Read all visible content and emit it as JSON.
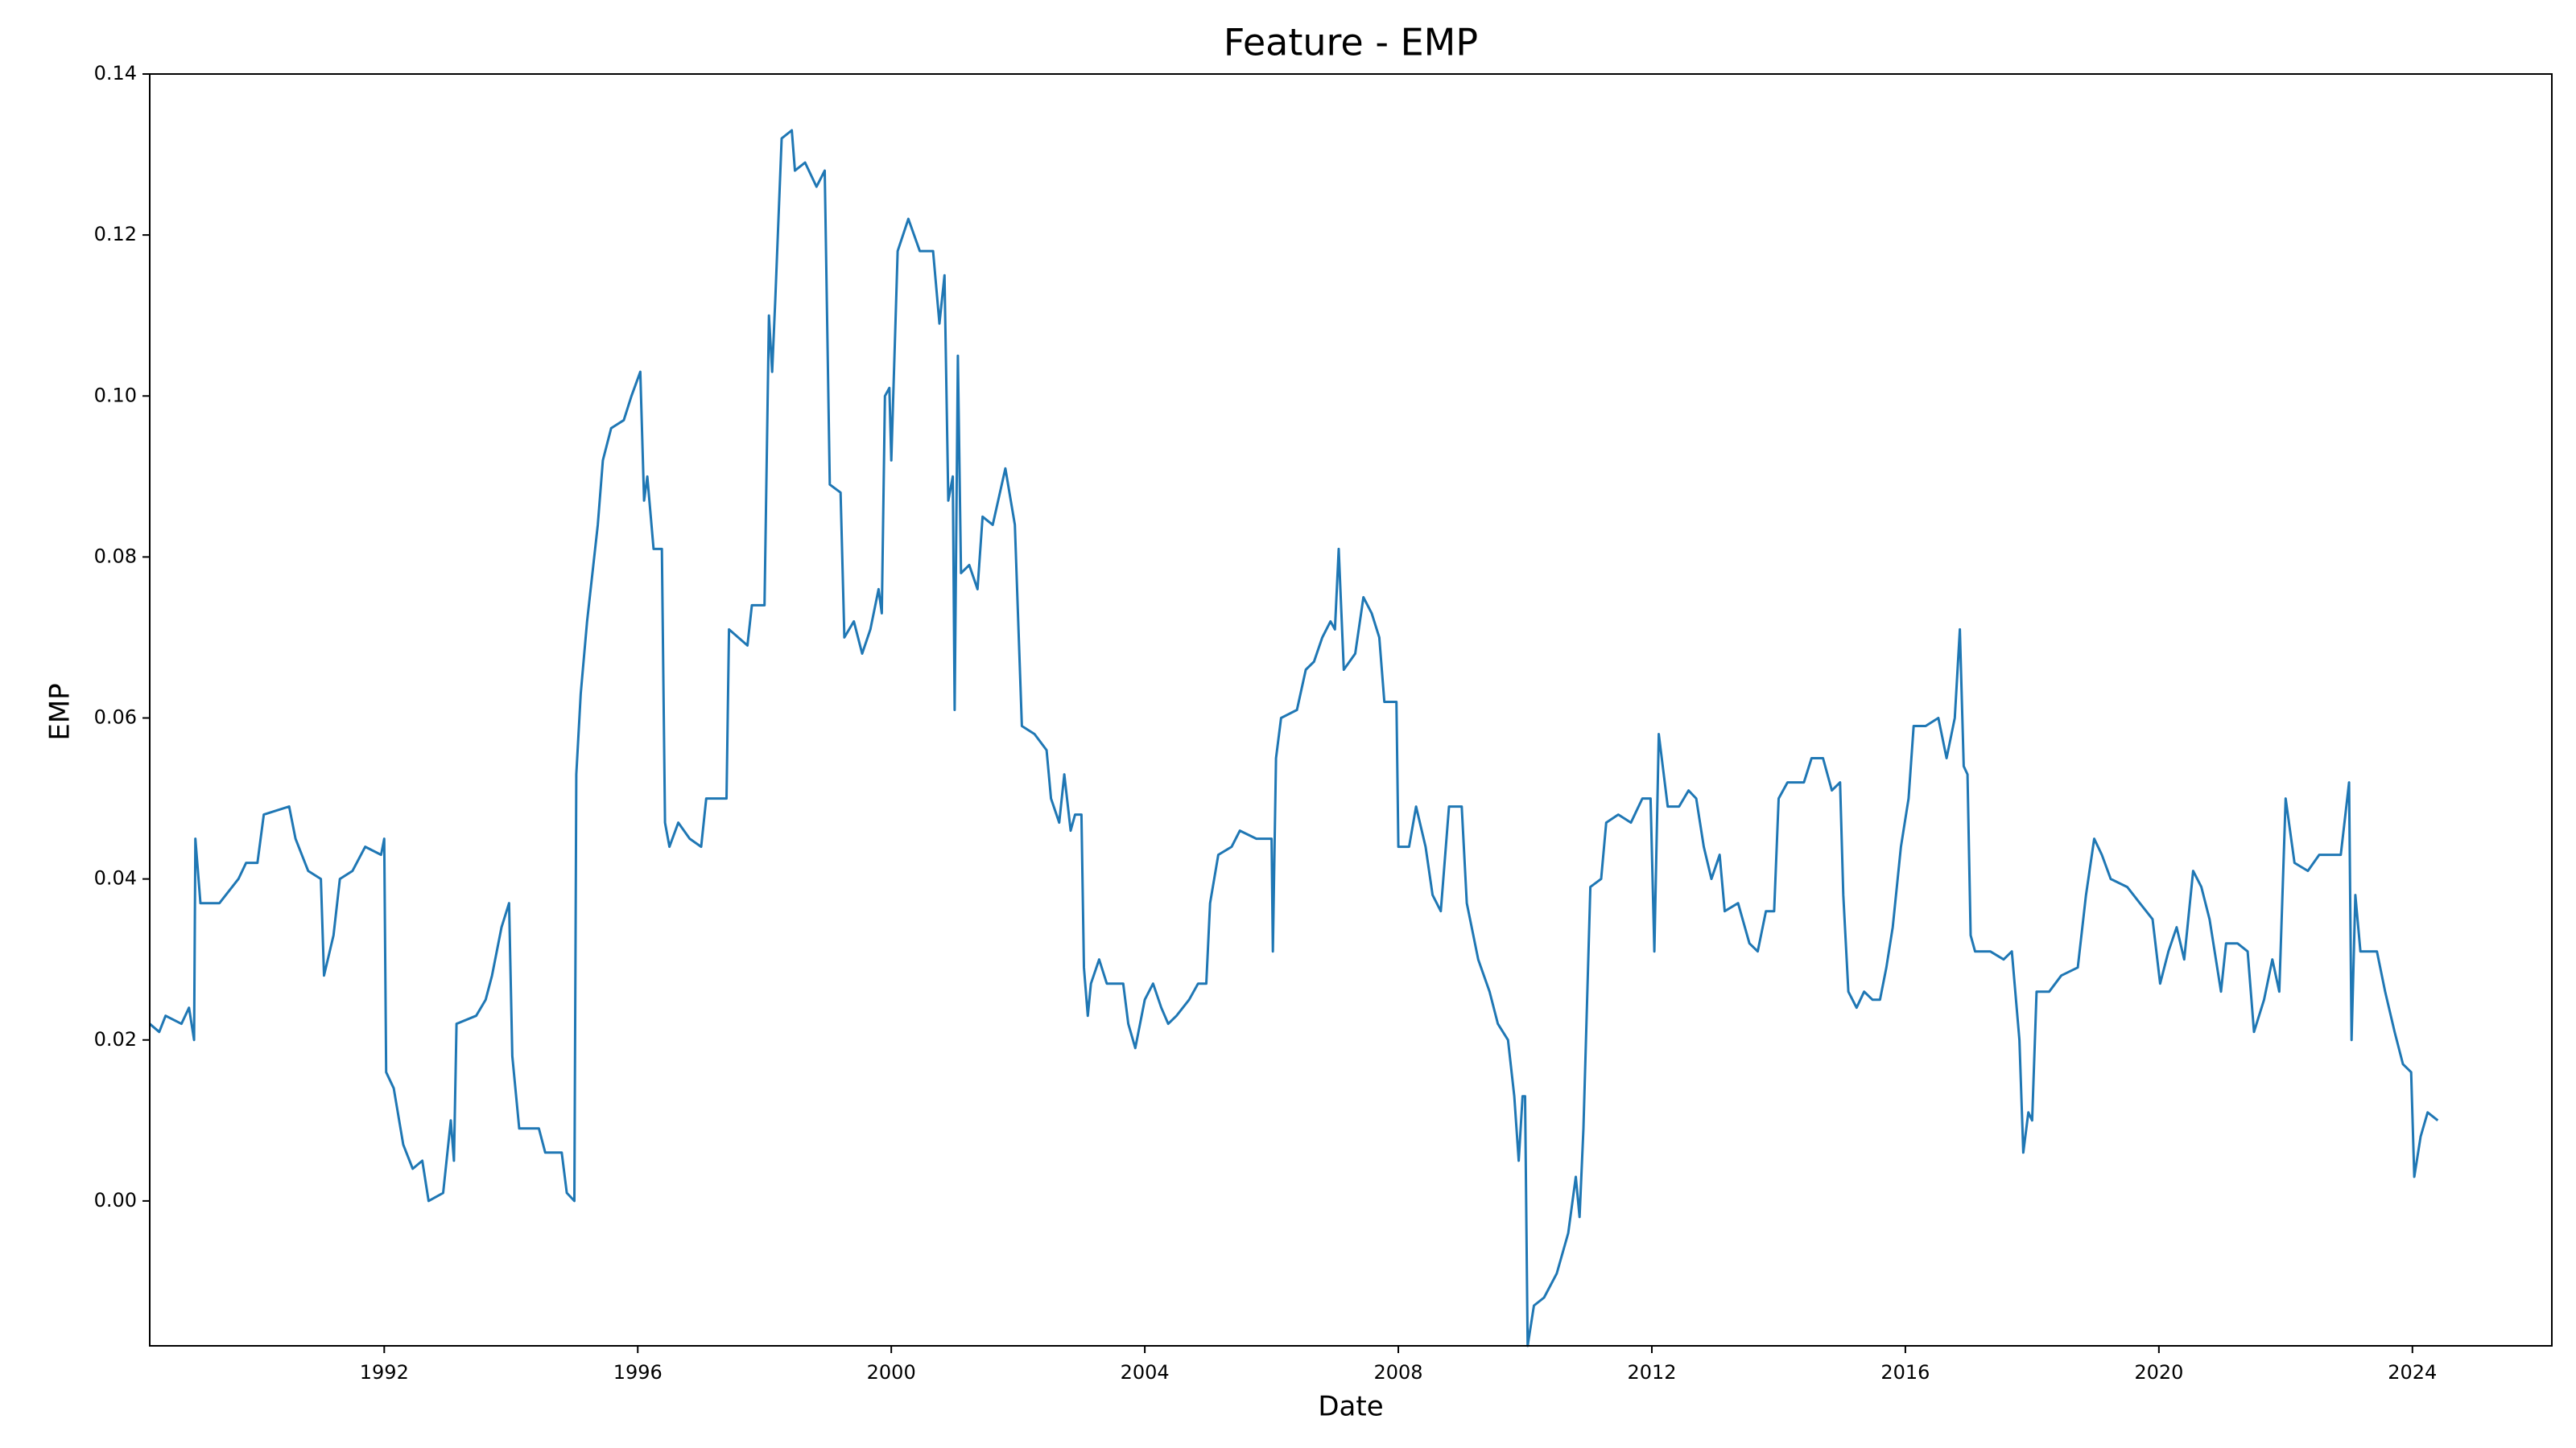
{
  "chart_data": {
    "type": "line",
    "title": "Feature - EMP",
    "xlabel": "Date",
    "ylabel": "EMP",
    "color": "#1f77b4",
    "xlim": [
      1988.3,
      2026.2
    ],
    "xticks": [
      1992,
      1996,
      2000,
      2004,
      2008,
      2012,
      2016,
      2020,
      2024
    ],
    "ylim": [
      -0.018,
      0.14
    ],
    "yticks": [
      {
        "value": 0,
        "label": "0.00"
      },
      0.02,
      0.04,
      0.06,
      0.08,
      {
        "value": 0.1,
        "label": "0.10"
      },
      0.12,
      0.14
    ],
    "x": [
      1988.3,
      1988.45,
      1988.55,
      1988.8,
      1988.92,
      1989.0,
      1989.02,
      1989.1,
      1989.4,
      1989.7,
      1989.82,
      1990.0,
      1990.1,
      1990.5,
      1990.6,
      1990.8,
      1991.0,
      1991.05,
      1991.2,
      1991.3,
      1991.5,
      1991.7,
      1991.95,
      1992.0,
      1992.03,
      1992.15,
      1992.3,
      1992.45,
      1992.6,
      1992.7,
      1992.93,
      1993.05,
      1993.1,
      1993.14,
      1993.45,
      1993.6,
      1993.7,
      1993.85,
      1993.97,
      1994.02,
      1994.13,
      1994.44,
      1994.54,
      1994.8,
      1994.88,
      1995.0,
      1995.03,
      1995.1,
      1995.2,
      1995.37,
      1995.45,
      1995.58,
      1995.78,
      1995.9,
      1996.04,
      1996.1,
      1996.15,
      1996.25,
      1996.38,
      1996.43,
      1996.5,
      1996.64,
      1996.82,
      1997.0,
      1997.08,
      1997.4,
      1997.44,
      1997.73,
      1997.8,
      1998.0,
      1998.07,
      1998.12,
      1998.17,
      1998.27,
      1998.43,
      1998.48,
      1998.64,
      1998.82,
      1998.95,
      1999.03,
      1999.2,
      1999.26,
      1999.41,
      1999.54,
      1999.67,
      1999.8,
      1999.85,
      1999.9,
      1999.97,
      2000.0,
      2000.1,
      2000.27,
      2000.45,
      2000.66,
      2000.76,
      2000.84,
      2000.9,
      2000.97,
      2001.0,
      2001.05,
      2001.1,
      2001.23,
      2001.36,
      2001.44,
      2001.6,
      2001.8,
      2001.95,
      2002.06,
      2002.26,
      2002.45,
      2002.52,
      2002.65,
      2002.73,
      2002.83,
      2002.9,
      2003.0,
      2003.04,
      2003.1,
      2003.15,
      2003.28,
      2003.4,
      2003.66,
      2003.74,
      2003.85,
      2004.0,
      2004.13,
      2004.26,
      2004.37,
      2004.5,
      2004.7,
      2004.84,
      2004.97,
      2005.03,
      2005.16,
      2005.37,
      2005.5,
      2005.76,
      2006.0,
      2006.02,
      2006.07,
      2006.15,
      2006.4,
      2006.54,
      2006.67,
      2006.8,
      2006.93,
      2007.0,
      2007.06,
      2007.14,
      2007.32,
      2007.45,
      2007.58,
      2007.7,
      2007.78,
      2007.97,
      2008.0,
      2008.17,
      2008.28,
      2008.43,
      2008.54,
      2008.67,
      2008.8,
      2009.0,
      2009.08,
      2009.26,
      2009.44,
      2009.57,
      2009.73,
      2009.83,
      2009.9,
      2009.96,
      2010.0,
      2010.04,
      2010.14,
      2010.3,
      2010.5,
      2010.68,
      2010.8,
      2010.86,
      2010.92,
      2011.03,
      2011.2,
      2011.28,
      2011.47,
      2011.67,
      2011.85,
      2011.98,
      2012.04,
      2012.11,
      2012.25,
      2012.43,
      2012.58,
      2012.7,
      2012.82,
      2012.94,
      2013.07,
      2013.15,
      2013.36,
      2013.54,
      2013.67,
      2013.8,
      2013.93,
      2014.0,
      2014.14,
      2014.4,
      2014.52,
      2014.7,
      2014.84,
      2014.97,
      2015.02,
      2015.1,
      2015.23,
      2015.35,
      2015.48,
      2015.6,
      2015.7,
      2015.8,
      2015.93,
      2016.05,
      2016.13,
      2016.32,
      2016.52,
      2016.65,
      2016.78,
      2016.86,
      2016.92,
      2016.98,
      2017.03,
      2017.1,
      2017.34,
      2017.55,
      2017.68,
      2017.8,
      2017.86,
      2017.94,
      2018.0,
      2018.07,
      2018.27,
      2018.46,
      2018.72,
      2018.85,
      2018.98,
      2019.1,
      2019.24,
      2019.5,
      2019.7,
      2019.9,
      2020.02,
      2020.15,
      2020.28,
      2020.4,
      2020.54,
      2020.67,
      2020.8,
      2020.98,
      2021.06,
      2021.24,
      2021.4,
      2021.5,
      2021.66,
      2021.79,
      2021.9,
      2022.0,
      2022.14,
      2022.35,
      2022.53,
      2022.74,
      2022.87,
      2023.0,
      2023.04,
      2023.1,
      2023.18,
      2023.44,
      2023.57,
      2023.72,
      2023.85,
      2023.98,
      2024.03,
      2024.13,
      2024.24,
      2024.4
    ],
    "values": [
      0.022,
      0.021,
      0.023,
      0.022,
      0.024,
      0.02,
      0.045,
      0.037,
      0.037,
      0.04,
      0.042,
      0.042,
      0.048,
      0.049,
      0.045,
      0.041,
      0.04,
      0.028,
      0.033,
      0.04,
      0.041,
      0.044,
      0.043,
      0.045,
      0.016,
      0.014,
      0.007,
      0.004,
      0.005,
      0.0,
      0.001,
      0.01,
      0.005,
      0.022,
      0.023,
      0.025,
      0.028,
      0.034,
      0.037,
      0.018,
      0.009,
      0.009,
      0.006,
      0.006,
      0.001,
      0.0,
      0.053,
      0.063,
      0.072,
      0.084,
      0.092,
      0.096,
      0.097,
      0.1,
      0.103,
      0.087,
      0.09,
      0.081,
      0.081,
      0.047,
      0.044,
      0.047,
      0.045,
      0.044,
      0.05,
      0.05,
      0.071,
      0.069,
      0.074,
      0.074,
      0.11,
      0.103,
      0.112,
      0.132,
      0.133,
      0.128,
      0.129,
      0.126,
      0.128,
      0.089,
      0.088,
      0.07,
      0.072,
      0.068,
      0.071,
      0.076,
      0.073,
      0.1,
      0.101,
      0.092,
      0.118,
      0.122,
      0.118,
      0.118,
      0.109,
      0.115,
      0.087,
      0.09,
      0.061,
      0.105,
      0.078,
      0.079,
      0.076,
      0.085,
      0.084,
      0.091,
      0.084,
      0.059,
      0.058,
      0.056,
      0.05,
      0.047,
      0.053,
      0.046,
      0.048,
      0.048,
      0.029,
      0.023,
      0.027,
      0.03,
      0.027,
      0.027,
      0.022,
      0.019,
      0.025,
      0.027,
      0.024,
      0.022,
      0.023,
      0.025,
      0.027,
      0.027,
      0.037,
      0.043,
      0.044,
      0.046,
      0.045,
      0.045,
      0.031,
      0.055,
      0.06,
      0.061,
      0.066,
      0.067,
      0.07,
      0.072,
      0.071,
      0.081,
      0.066,
      0.068,
      0.075,
      0.073,
      0.07,
      0.062,
      0.062,
      0.044,
      0.044,
      0.049,
      0.044,
      0.038,
      0.036,
      0.049,
      0.049,
      0.037,
      0.03,
      0.026,
      0.022,
      0.02,
      0.013,
      0.005,
      0.013,
      0.013,
      -0.018,
      -0.013,
      -0.012,
      -0.009,
      -0.004,
      0.003,
      -0.002,
      0.009,
      0.039,
      0.04,
      0.047,
      0.048,
      0.047,
      0.05,
      0.05,
      0.031,
      0.058,
      0.049,
      0.049,
      0.051,
      0.05,
      0.044,
      0.04,
      0.043,
      0.036,
      0.037,
      0.032,
      0.031,
      0.036,
      0.036,
      0.05,
      0.052,
      0.052,
      0.055,
      0.055,
      0.051,
      0.052,
      0.038,
      0.026,
      0.024,
      0.026,
      0.025,
      0.025,
      0.029,
      0.034,
      0.044,
      0.05,
      0.059,
      0.059,
      0.06,
      0.055,
      0.06,
      0.071,
      0.054,
      0.053,
      0.033,
      0.031,
      0.031,
      0.03,
      0.031,
      0.02,
      0.006,
      0.011,
      0.01,
      0.026,
      0.026,
      0.028,
      0.029,
      0.038,
      0.045,
      0.043,
      0.04,
      0.039,
      0.037,
      0.035,
      0.027,
      0.031,
      0.034,
      0.03,
      0.041,
      0.039,
      0.035,
      0.026,
      0.032,
      0.032,
      0.031,
      0.021,
      0.025,
      0.03,
      0.026,
      0.05,
      0.042,
      0.041,
      0.043,
      0.043,
      0.043,
      0.052,
      0.02,
      0.038,
      0.031,
      0.031,
      0.026,
      0.021,
      0.017,
      0.016,
      0.003,
      0.008,
      0.011,
      0.01
    ]
  }
}
